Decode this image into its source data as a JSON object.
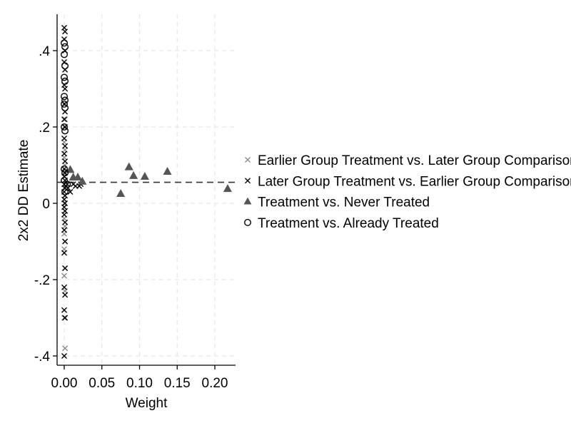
{
  "chart_data": {
    "type": "scatter",
    "xlabel": "Weight",
    "ylabel": "2x2 DD Estimate",
    "xlim": [
      0,
      0.22
    ],
    "ylim": [
      -0.4,
      0.45
    ],
    "x_ticks": [
      0,
      0.05,
      0.1,
      0.15,
      0.2
    ],
    "x_tick_labels": [
      "0.00",
      "0.05",
      "0.10",
      "0.15",
      "0.20"
    ],
    "y_ticks": [
      -0.4,
      -0.2,
      0,
      0.2,
      0.4
    ],
    "y_tick_labels": [
      "-.4",
      "-.2",
      "0",
      ".2",
      ".4"
    ],
    "grid": true,
    "legend_placement": "right",
    "reference_line": {
      "y": 0.055,
      "style": "dashed",
      "color": "#333333"
    },
    "series": [
      {
        "name": "Earlier Group Treatment vs. Later Group Comparison",
        "marker": "x",
        "color": "#8c8c8c",
        "points": [
          [
            0.0,
            0.16
          ],
          [
            0.001,
            0.14
          ],
          [
            0.0,
            0.12
          ],
          [
            0.001,
            0.1
          ],
          [
            0.0,
            0.08
          ],
          [
            0.001,
            0.06
          ],
          [
            0.0,
            0.04
          ],
          [
            0.001,
            0.02
          ],
          [
            0.0,
            0.0
          ],
          [
            0.001,
            -0.02
          ],
          [
            0.0,
            -0.04
          ],
          [
            0.001,
            -0.06
          ],
          [
            0.0,
            -0.08
          ],
          [
            0.001,
            -0.1
          ],
          [
            0.0,
            -0.12
          ],
          [
            0.001,
            -0.17
          ],
          [
            0.0,
            -0.19
          ],
          [
            0.001,
            -0.23
          ],
          [
            0.0,
            -0.3
          ],
          [
            0.001,
            -0.38
          ],
          [
            0.0,
            0.2
          ],
          [
            0.001,
            0.22
          ]
        ]
      },
      {
        "name": "Later Group Treatment vs. Earlier Group Comparison",
        "marker": "x",
        "color": "#000000",
        "points": [
          [
            0.0,
            0.46
          ],
          [
            0.001,
            0.45
          ],
          [
            0.0,
            0.43
          ],
          [
            0.001,
            0.4
          ],
          [
            0.0,
            0.37
          ],
          [
            0.001,
            0.35
          ],
          [
            0.0,
            0.31
          ],
          [
            0.001,
            0.3
          ],
          [
            0.0,
            0.26
          ],
          [
            0.001,
            0.24
          ],
          [
            0.0,
            0.22
          ],
          [
            0.001,
            0.2
          ],
          [
            0.0,
            0.17
          ],
          [
            0.001,
            0.15
          ],
          [
            0.0,
            0.13
          ],
          [
            0.001,
            0.11
          ],
          [
            0.0,
            0.09
          ],
          [
            0.001,
            0.08
          ],
          [
            0.0,
            0.07
          ],
          [
            0.001,
            0.06
          ],
          [
            0.0,
            0.05
          ],
          [
            0.001,
            0.04
          ],
          [
            0.0,
            0.03
          ],
          [
            0.001,
            0.02
          ],
          [
            0.0,
            0.01
          ],
          [
            0.001,
            0.0
          ],
          [
            0.0,
            -0.01
          ],
          [
            0.001,
            -0.02
          ],
          [
            0.0,
            -0.03
          ],
          [
            0.001,
            -0.05
          ],
          [
            0.0,
            -0.07
          ],
          [
            0.001,
            -0.1
          ],
          [
            0.0,
            -0.13
          ],
          [
            0.001,
            -0.17
          ],
          [
            0.0,
            -0.22
          ],
          [
            0.001,
            -0.24
          ],
          [
            0.0,
            -0.28
          ],
          [
            0.001,
            -0.3
          ],
          [
            0.0,
            -0.4
          ],
          [
            0.004,
            0.05
          ],
          [
            0.005,
            0.04
          ],
          [
            0.008,
            0.03
          ],
          [
            0.012,
            0.05
          ],
          [
            0.015,
            0.045
          ],
          [
            0.02,
            0.045
          ],
          [
            0.022,
            0.05
          ]
        ]
      },
      {
        "name": "Treatment vs. Never Treated",
        "marker": "triangle",
        "color": "#555555",
        "points": [
          [
            0.008,
            0.088
          ],
          [
            0.012,
            0.068
          ],
          [
            0.018,
            0.068
          ],
          [
            0.024,
            0.057
          ],
          [
            0.075,
            0.025
          ],
          [
            0.086,
            0.095
          ],
          [
            0.092,
            0.072
          ],
          [
            0.107,
            0.07
          ],
          [
            0.137,
            0.083
          ],
          [
            0.217,
            0.038
          ]
        ]
      },
      {
        "name": "Treatment vs. Already Treated",
        "marker": "circle",
        "color": "#000000",
        "points": [
          [
            0.0,
            0.42
          ],
          [
            0.001,
            0.41
          ],
          [
            0.0,
            0.39
          ],
          [
            0.001,
            0.36
          ],
          [
            0.0,
            0.33
          ],
          [
            0.001,
            0.32
          ],
          [
            0.0,
            0.28
          ],
          [
            0.001,
            0.27
          ],
          [
            0.0,
            0.26
          ],
          [
            0.001,
            0.25
          ],
          [
            0.0,
            0.2
          ],
          [
            0.001,
            0.19
          ],
          [
            0.0,
            0.09
          ],
          [
            0.001,
            0.08
          ],
          [
            0.0,
            0.06
          ],
          [
            0.004,
            0.05
          ],
          [
            0.001,
            0.03
          ]
        ]
      }
    ]
  }
}
